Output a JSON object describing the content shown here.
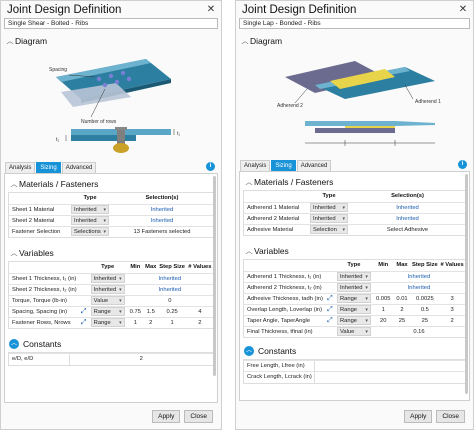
{
  "left": {
    "title": "Joint Design Definition",
    "subtitle": "Single Shear - Bolted - Ribs",
    "diagram_heading": "Diagram",
    "diagram_labels": {
      "spacing": "Spacing",
      "rows": "Number of rows",
      "t1": "t₁",
      "t2": "t₂"
    },
    "tabs": [
      "Analysis",
      "Sizing",
      "Advanced"
    ],
    "active_tab": "Sizing",
    "materials": {
      "heading": "Materials / Fasteners",
      "columns": [
        "Type",
        "Selection(s)"
      ],
      "rows": [
        {
          "name": "Sheet 1 Material",
          "type": "Inherited",
          "sel": "Inherited"
        },
        {
          "name": "Sheet 2 Material",
          "type": "Inherited",
          "sel": "Inherited"
        },
        {
          "name": "Fastener Selection",
          "type": "Selections",
          "sel": "13 Fasteners selected"
        }
      ]
    },
    "variables": {
      "heading": "Variables",
      "columns": [
        "Type",
        "Min",
        "Max",
        "Step Size",
        "# Values"
      ],
      "rows": [
        {
          "name": "Sheet 1 Thickness, t₁ (in)",
          "type": "Inherited",
          "min": "",
          "max": "Inherited",
          "step": "",
          "n": ""
        },
        {
          "name": "Sheet 2 Thickness, t₂ (in)",
          "type": "Inherited",
          "min": "",
          "max": "Inherited",
          "step": "",
          "n": ""
        },
        {
          "name": "Torque, Torque (lb-in)",
          "type": "Value",
          "min": "",
          "max": "0",
          "step": "",
          "n": ""
        },
        {
          "name": "Spacing, Spacing (in)",
          "type": "Range",
          "min": "0.75",
          "max": "1.5",
          "step": "0.25",
          "n": "4"
        },
        {
          "name": "Fastener Rows, Nrows",
          "type": "Range",
          "min": "1",
          "max": "2",
          "step": "1",
          "n": "2"
        }
      ]
    },
    "constants": {
      "heading": "Constants",
      "rows": [
        {
          "name": "e/D, e/D",
          "value": "2"
        }
      ]
    },
    "apply": "Apply",
    "close": "Close"
  },
  "right": {
    "title": "Joint Design Definition",
    "subtitle": "Single Lap - Bonded - Ribs",
    "diagram_heading": "Diagram",
    "diagram_labels": {
      "adherend2": "Adherend 2",
      "adherend1": "Adherend 1"
    },
    "tabs": [
      "Analysis",
      "Sizing",
      "Advanced"
    ],
    "active_tab": "Sizing",
    "materials": {
      "heading": "Materials / Fasteners",
      "columns": [
        "Type",
        "Selection(s)"
      ],
      "rows": [
        {
          "name": "Adherend 1 Material",
          "type": "Inherited",
          "sel": "Inherited"
        },
        {
          "name": "Adherend 2 Material",
          "type": "Inherited",
          "sel": "Inherited"
        },
        {
          "name": "Adhesive Material",
          "type": "Selection",
          "sel": "Select Adhesive"
        }
      ]
    },
    "variables": {
      "heading": "Variables",
      "columns": [
        "Type",
        "Min",
        "Max",
        "Step Size",
        "# Values"
      ],
      "rows": [
        {
          "name": "Adherend 1 Thickness, t₁ (in)",
          "type": "Inherited",
          "min": "",
          "max": "Inherited",
          "step": "",
          "n": "",
          "edit": false
        },
        {
          "name": "Adherend 2 Thickness, t₂ (in)",
          "type": "Inherited",
          "min": "",
          "max": "Inherited",
          "step": "",
          "n": "",
          "edit": false
        },
        {
          "name": "Adhesive Thickness, tadh (in)",
          "type": "Range",
          "min": "0.005",
          "max": "0.01",
          "step": "0.0025",
          "n": "3",
          "edit": true
        },
        {
          "name": "Overlap Length, Loverlap (in)",
          "type": "Range",
          "min": "1",
          "max": "2",
          "step": "0.5",
          "n": "3",
          "edit": true
        },
        {
          "name": "Taper Angle, TaperAngle",
          "type": "Range",
          "min": "20",
          "max": "25",
          "step": "25",
          "n": "2",
          "edit": true
        },
        {
          "name": "Final Thickness, tfinal (in)",
          "type": "Value",
          "min": "",
          "max": "0.16",
          "step": "",
          "n": "",
          "edit": false
        }
      ]
    },
    "constants": {
      "heading": "Constants",
      "rows": [
        {
          "name": "Free Length, Lfree (in)",
          "value": ""
        },
        {
          "name": "Crack Length, Lcrack (in)",
          "value": ""
        }
      ]
    },
    "apply": "Apply",
    "close": "Close"
  }
}
